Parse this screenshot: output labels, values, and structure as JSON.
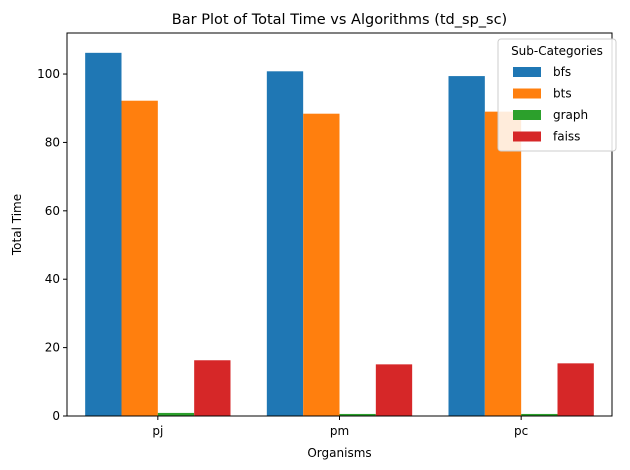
{
  "chart_data": {
    "type": "bar",
    "title": "Bar Plot of Total Time vs Algorithms (td_sp_sc)",
    "xlabel": "Organisms",
    "ylabel": "Total Time",
    "categories": [
      "pj",
      "pm",
      "pc"
    ],
    "ylim": [
      0,
      112
    ],
    "yticks": [
      0,
      20,
      40,
      60,
      80,
      100
    ],
    "grid": false,
    "legend": {
      "title": "Sub-Categories",
      "placement": "top-right"
    },
    "series": [
      {
        "name": "bfs",
        "color": "#1f77b4",
        "values": [
          106.2,
          100.8,
          99.4
        ]
      },
      {
        "name": "bts",
        "color": "#ff7f0e",
        "values": [
          92.2,
          88.4,
          89.0
        ]
      },
      {
        "name": "graph",
        "color": "#2ca02c",
        "values": [
          0.9,
          0.6,
          0.6
        ]
      },
      {
        "name": "faiss",
        "color": "#d62728",
        "values": [
          16.3,
          15.1,
          15.4
        ]
      }
    ]
  }
}
